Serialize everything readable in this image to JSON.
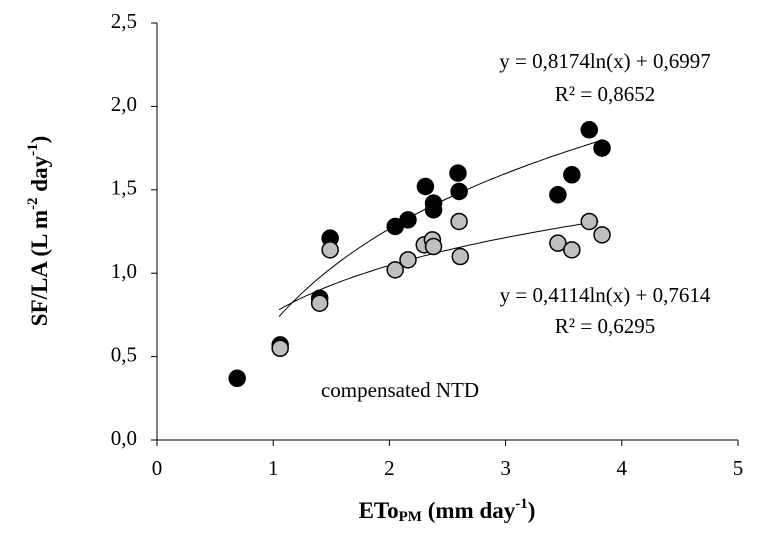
{
  "chart_data": {
    "type": "scatter",
    "ylabel": [
      "SF/LA (L m",
      "-2",
      " day",
      "-1",
      ")"
    ],
    "xlabel": [
      "ETo",
      "PM",
      " (mm day",
      "-1",
      ")"
    ],
    "xlim": [
      0,
      5
    ],
    "xticks": [
      0,
      1,
      2,
      3,
      4,
      5
    ],
    "ylim": [
      0,
      2.5
    ],
    "yticks": [
      {
        "value": 0,
        "label": "0,0"
      },
      {
        "value": 0.5,
        "label": "0,5"
      },
      {
        "value": 1,
        "label": "1,0"
      },
      {
        "value": 1.5,
        "label": "1,5"
      },
      {
        "value": 2,
        "label": "2,0"
      },
      {
        "value": 2.5,
        "label": "2,5"
      }
    ],
    "series": [
      {
        "color": "#000000",
        "x": [
          0.69,
          1.06,
          1.4,
          1.49,
          2.05,
          2.16,
          2.31,
          2.38,
          2.38,
          2.59,
          2.6,
          3.45,
          3.57,
          3.72,
          3.83
        ],
        "values": [
          0.37,
          0.57,
          0.85,
          1.21,
          1.28,
          1.32,
          1.52,
          1.42,
          1.38,
          1.6,
          1.49,
          1.47,
          1.59,
          1.86,
          1.75
        ],
        "fit": {
          "a": 0.8174,
          "b": 0.6997,
          "domain": [
            1.05,
            3.8
          ]
        },
        "equation": "y = 0,8174ln(x) + 0,6997",
        "r2": "R² = 0,8652"
      },
      {
        "color": "#bfbfbf",
        "x": [
          1.06,
          1.4,
          1.49,
          2.05,
          2.16,
          2.3,
          2.37,
          2.38,
          2.6,
          2.61,
          3.45,
          3.57,
          3.72,
          3.83
        ],
        "values": [
          0.55,
          0.82,
          1.14,
          1.02,
          1.08,
          1.17,
          1.2,
          1.16,
          1.31,
          1.1,
          1.18,
          1.14,
          1.31,
          1.23
        ],
        "fit": {
          "a": 0.4114,
          "b": 0.7614,
          "domain": [
            1.05,
            3.8
          ]
        },
        "equation": "y = 0,4114ln(x) + 0,7614",
        "r2": "R² = 0,6295"
      }
    ],
    "annotation": "compensated NTD"
  }
}
